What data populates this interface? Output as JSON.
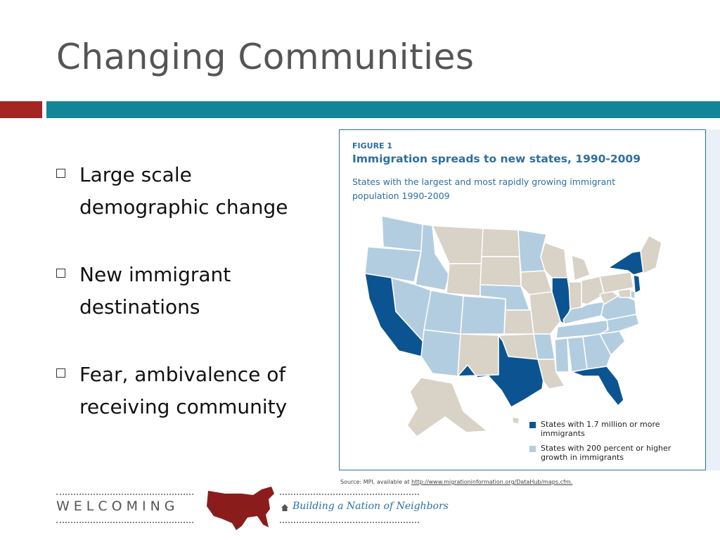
{
  "slide": {
    "title": "Changing Communities",
    "bullets": [
      {
        "line1": "Large scale",
        "line2": "demographic change"
      },
      {
        "line1": "New immigrant",
        "line2": "destinations"
      },
      {
        "line1": "Fear, ambivalence of",
        "line2": "receiving community"
      }
    ]
  },
  "figure": {
    "label": "FIGURE 1",
    "title": "Immigration spreads to new states, 1990-2009",
    "subtitle": "States with the largest and most rapidly growing immigrant population 1990-2009",
    "legend": [
      {
        "label": "States with 1.7 million or more immigrants",
        "color": "#0b5491"
      },
      {
        "label": "States with 200 percent or higher growth in immigrants",
        "color": "#b3cde0"
      }
    ],
    "source_prefix": "Source: MPI, available at",
    "source_url": "http://www.migrationinformation.org/DataHub/maps.cfm."
  },
  "map": {
    "high_immigrant_states": [
      "California",
      "Texas",
      "Florida",
      "Illinois",
      "New York",
      "New Jersey"
    ],
    "high_growth_states": [
      "Washington",
      "Oregon",
      "Idaho",
      "Nevada",
      "Utah",
      "Arizona",
      "Colorado",
      "Nebraska",
      "Minnesota",
      "Arkansas",
      "Tennessee",
      "Kentucky",
      "Mississippi",
      "Alabama",
      "Georgia",
      "South Carolina",
      "North Carolina",
      "Virginia",
      "Delaware"
    ],
    "colors": {
      "high": "#0b5491",
      "growth": "#b3cde0",
      "other": "#d8d2c7",
      "border": "#ffffff"
    }
  },
  "footer": {
    "org": "WELCOMING",
    "tagline": "Building a Nation of Neighbors",
    "logo_color": "#8b1c1c"
  },
  "theme": {
    "accent_red": "#a42522",
    "accent_teal": "#128598"
  }
}
